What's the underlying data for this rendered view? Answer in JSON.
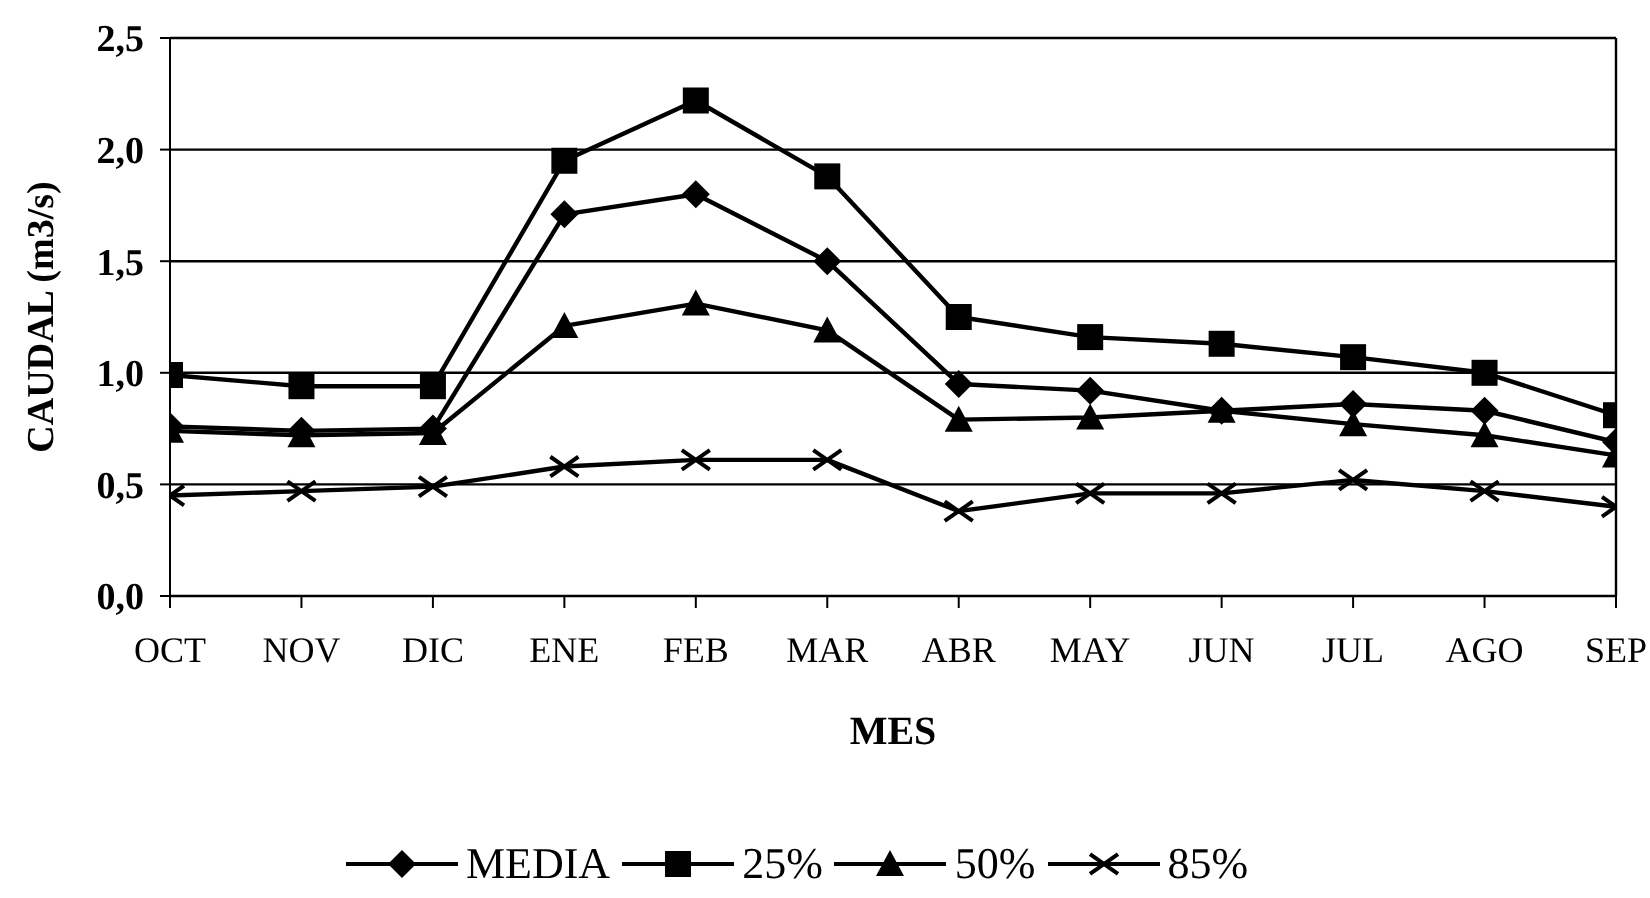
{
  "chart_data": {
    "type": "line",
    "xlabel": "MES",
    "ylabel": "CAUDAL (m3/s)",
    "categories": [
      "OCT",
      "NOV",
      "DIC",
      "ENE",
      "FEB",
      "MAR",
      "ABR",
      "MAY",
      "JUN",
      "JUL",
      "AGO",
      "SEP"
    ],
    "series": [
      {
        "name": "MEDIA",
        "color": "#000000",
        "marker": "diamond",
        "values": [
          0.76,
          0.74,
          0.75,
          1.71,
          1.8,
          1.5,
          0.95,
          0.92,
          0.83,
          0.86,
          0.83,
          0.69
        ]
      },
      {
        "name": "25%",
        "color": "#000000",
        "marker": "square",
        "values": [
          0.99,
          0.94,
          0.94,
          1.95,
          2.22,
          1.88,
          1.25,
          1.16,
          1.13,
          1.07,
          1.0,
          0.81
        ]
      },
      {
        "name": "50%",
        "color": "#000000",
        "marker": "triangle",
        "values": [
          0.74,
          0.72,
          0.73,
          1.21,
          1.31,
          1.19,
          0.79,
          0.8,
          0.83,
          0.77,
          0.72,
          0.63
        ]
      },
      {
        "name": "85%",
        "color": "#000000",
        "marker": "cross",
        "values": [
          0.45,
          0.47,
          0.49,
          0.58,
          0.61,
          0.61,
          0.38,
          0.46,
          0.46,
          0.52,
          0.47,
          0.4
        ]
      }
    ],
    "ylim": [
      0,
      2.5
    ],
    "yticks": [
      {
        "value": 0,
        "label": "0,0"
      },
      {
        "value": 0.5,
        "label": "0,5"
      },
      {
        "value": 1,
        "label": "1,0"
      },
      {
        "value": 1.5,
        "label": "1,5"
      },
      {
        "value": 2,
        "label": "2,0"
      },
      {
        "value": 2.5,
        "label": "2,5"
      }
    ],
    "grid": "y",
    "legend": "bottom",
    "line_style": "solid"
  }
}
